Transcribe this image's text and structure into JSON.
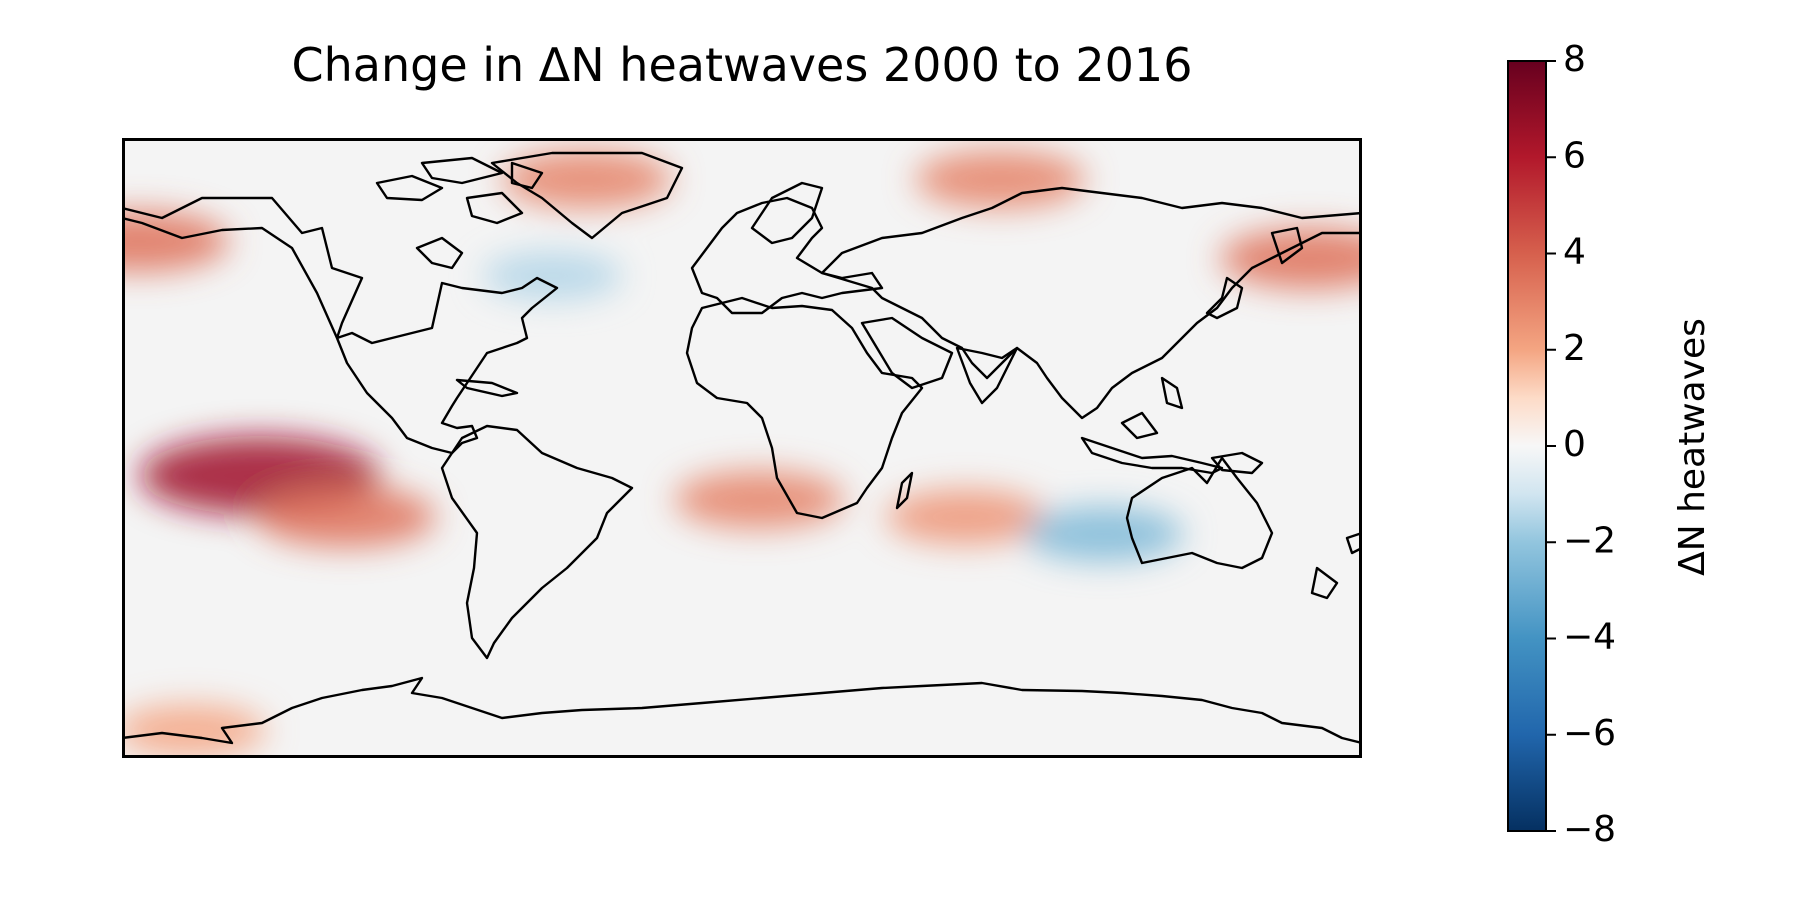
{
  "title": "Change in ΔN heatwaves 2000 to 2016",
  "colorbar": {
    "label": "ΔN heatwaves",
    "min": -8,
    "max": 8,
    "ticks": [
      {
        "value": 8,
        "label": "8"
      },
      {
        "value": 6,
        "label": "6"
      },
      {
        "value": 4,
        "label": "4"
      },
      {
        "value": 2,
        "label": "2"
      },
      {
        "value": 0,
        "label": "0"
      },
      {
        "value": -2,
        "label": "−2"
      },
      {
        "value": -4,
        "label": "−4"
      },
      {
        "value": -6,
        "label": "−6"
      },
      {
        "value": -8,
        "label": "−8"
      }
    ],
    "colormap": "RdBu_r",
    "colors": {
      "low": "#053061",
      "mid_low": "#4393c3",
      "mid": "#f7f7f7",
      "mid_high": "#d6604d",
      "high": "#67001f"
    }
  },
  "map": {
    "projection": "PlateCarree",
    "lon_range": [
      -180,
      180
    ],
    "lat_range": [
      -90,
      90
    ],
    "background": "#f4f4f4",
    "coastline_color": "#000000",
    "anomaly_regions": [
      {
        "name": "Central Pacific tropical band",
        "lon": -140,
        "lat": -8,
        "value": 6.5
      },
      {
        "name": "South Pacific band",
        "lon": -115,
        "lat": -20,
        "value": 3.5
      },
      {
        "name": "Southeast Atlantic",
        "lon": 5,
        "lat": -15,
        "value": 3
      },
      {
        "name": "Arctic Siberia",
        "lon": 75,
        "lat": 78,
        "value": 3
      },
      {
        "name": "Greenland / Canadian Arctic",
        "lon": -45,
        "lat": 78,
        "value": 3
      },
      {
        "name": "Bering Sea",
        "lon": -175,
        "lat": 60,
        "value": 3.5
      },
      {
        "name": "Northwest Pacific",
        "lon": 165,
        "lat": 55,
        "value": 3.5
      },
      {
        "name": "Southern Indian Ocean",
        "lon": 65,
        "lat": -20,
        "value": 2.5
      },
      {
        "name": "Antarctic coast",
        "lon": -160,
        "lat": -82,
        "value": 2
      },
      {
        "name": "East Indian Ocean",
        "lon": 105,
        "lat": -25,
        "value": -2.5
      },
      {
        "name": "Labrador Sea",
        "lon": -55,
        "lat": 50,
        "value": -1.5
      }
    ]
  }
}
